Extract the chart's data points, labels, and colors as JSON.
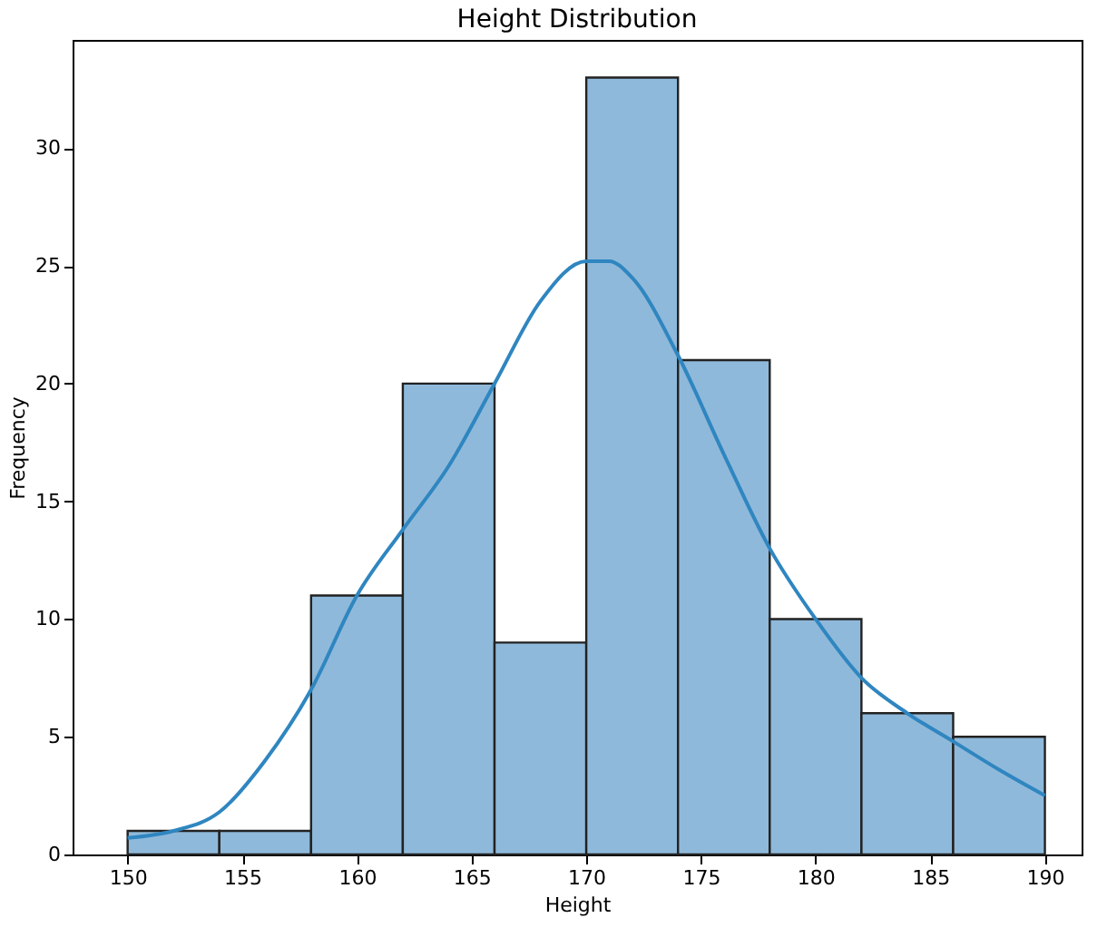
{
  "chart_data": {
    "type": "histogram",
    "title": "Height Distribution",
    "xlabel": "Height",
    "ylabel": "Frequency",
    "bins": [
      150,
      154,
      158,
      162,
      166,
      170,
      174,
      178,
      182,
      186,
      190
    ],
    "values": [
      1,
      1,
      11,
      20,
      9,
      33,
      21,
      10,
      6,
      5
    ],
    "color": "#8fb9da",
    "series": [
      {
        "type": "line",
        "color": "#2f86c0",
        "x": [
          150,
          152,
          154,
          156,
          158,
          160,
          162,
          164,
          166,
          168,
          170,
          171,
          172,
          174,
          176,
          178,
          180,
          182,
          184,
          186,
          188,
          190
        ],
        "values": [
          0.7,
          1,
          1.8,
          4,
          7,
          11,
          13.8,
          16.5,
          20,
          23.5,
          25.2,
          25.2,
          24.5,
          21.2,
          17,
          13,
          10,
          7.5,
          6,
          4.8,
          3.6,
          2.5
        ]
      }
    ],
    "xlim": [
      147.6,
      191.6
    ],
    "ylim": [
      0,
      34.6
    ],
    "xticks": [
      150,
      155,
      160,
      165,
      170,
      175,
      180,
      185,
      190
    ],
    "yticks": [
      0,
      5,
      10,
      15,
      20,
      25,
      30
    ],
    "grid": false
  }
}
